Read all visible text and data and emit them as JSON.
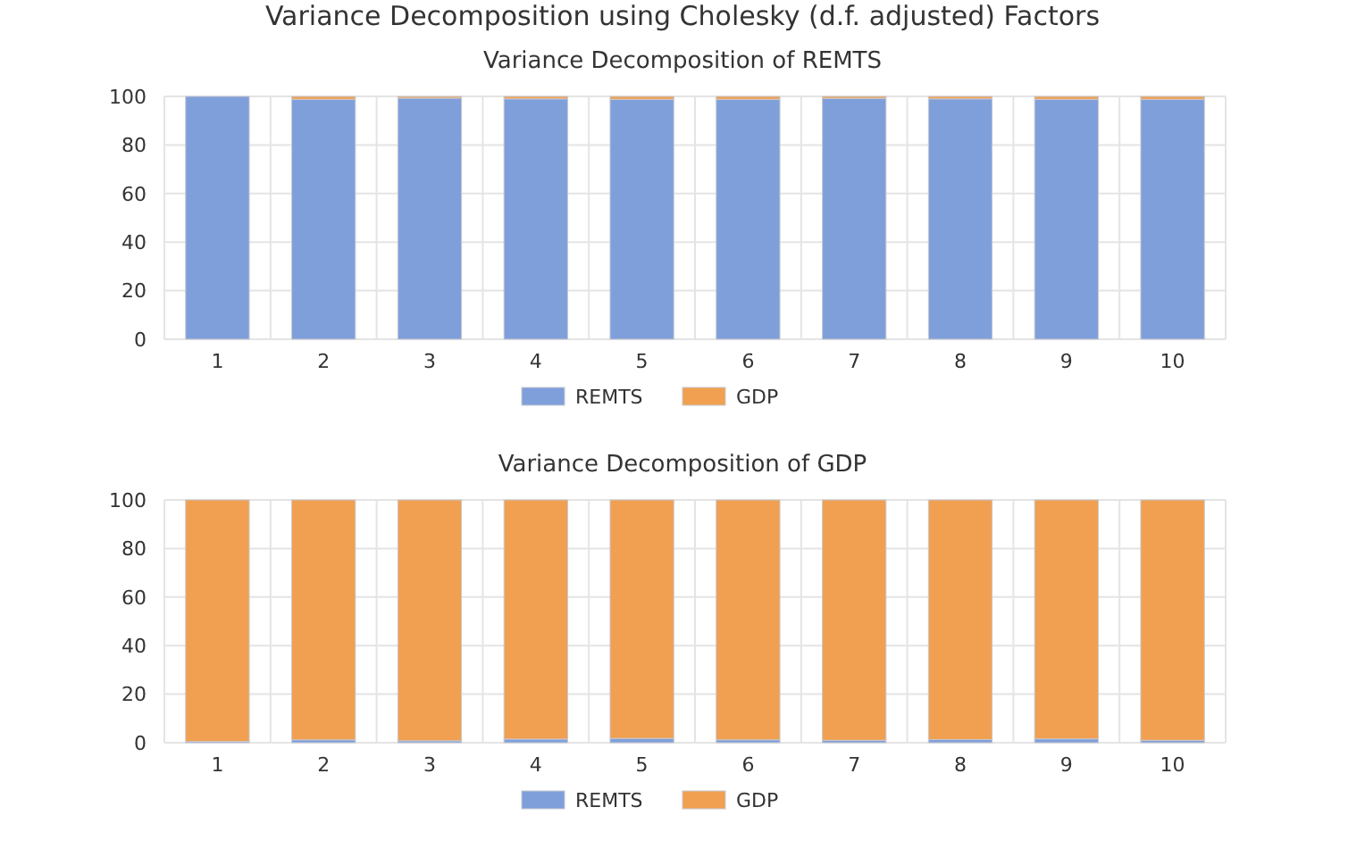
{
  "chart_data": [
    {
      "type": "bar",
      "title": "Variance Decomposition using Cholesky (d.f. adjusted) Factors",
      "subtitle": "Variance Decomposition of REMTS",
      "categories": [
        "1",
        "2",
        "3",
        "4",
        "5",
        "6",
        "7",
        "8",
        "9",
        "10"
      ],
      "stacked": true,
      "ylim": [
        0,
        100
      ],
      "yticks": [
        0,
        20,
        40,
        60,
        80,
        100
      ],
      "grid": true,
      "legend": "bottom",
      "series": [
        {
          "name": "REMTS",
          "color": "#7f9fdb",
          "values": [
            100,
            98.8,
            99.3,
            99,
            98.8,
            98.8,
            99.2,
            99,
            98.8,
            98.8
          ]
        },
        {
          "name": "GDP",
          "color": "#f0a050",
          "values": [
            0,
            1.2,
            0.7,
            1,
            1.2,
            1.2,
            0.8,
            1,
            1.2,
            1.2
          ]
        }
      ]
    },
    {
      "type": "bar",
      "subtitle": "Variance Decomposition of GDP",
      "categories": [
        "1",
        "2",
        "3",
        "4",
        "5",
        "6",
        "7",
        "8",
        "9",
        "10"
      ],
      "stacked": true,
      "ylim": [
        0,
        100
      ],
      "yticks": [
        0,
        20,
        40,
        60,
        80,
        100
      ],
      "grid": true,
      "legend": "bottom",
      "series": [
        {
          "name": "REMTS",
          "color": "#7f9fdb",
          "values": [
            0.5,
            1.2,
            0.8,
            1.5,
            1.8,
            1.2,
            1,
            1.3,
            1.6,
            1
          ]
        },
        {
          "name": "GDP",
          "color": "#f0a050",
          "values": [
            99.5,
            98.8,
            99.2,
            98.5,
            98.2,
            98.8,
            99,
            98.7,
            98.4,
            99
          ]
        }
      ]
    }
  ]
}
